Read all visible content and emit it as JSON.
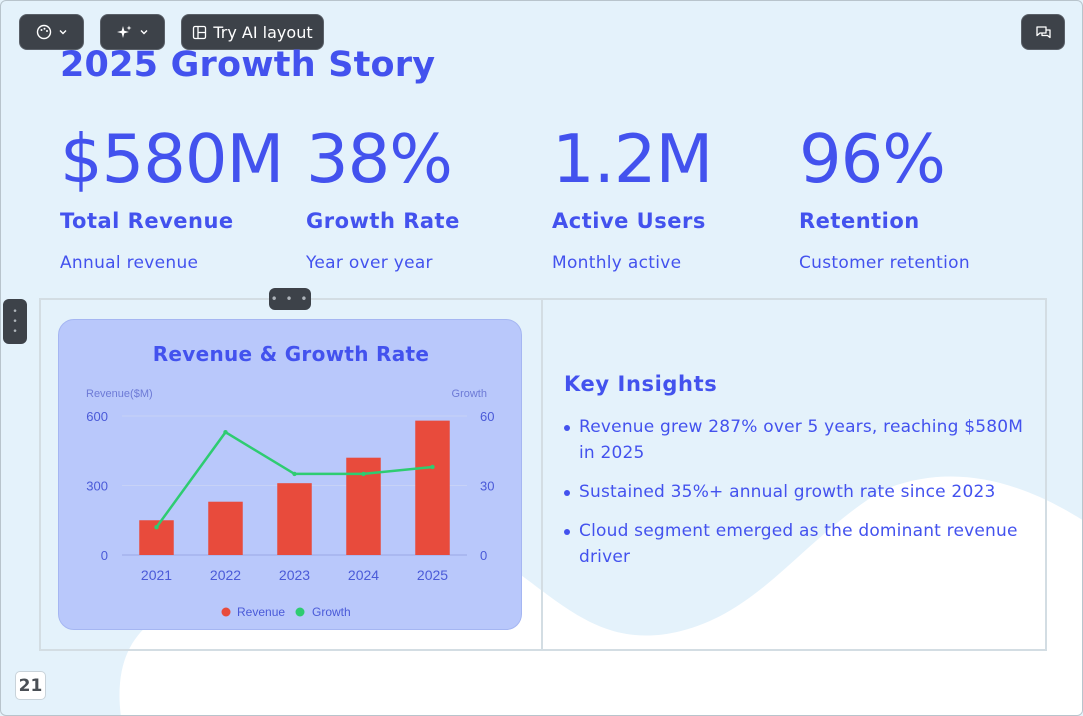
{
  "toolbar": {
    "theme_icon": "palette-icon",
    "magic_icon": "sparkle-icon",
    "layout_icon": "layout-icon",
    "layout_label": "Try AI layout",
    "comment_icon": "comment-icon"
  },
  "slide": {
    "title": "2025 Growth Story",
    "stats": [
      {
        "value": "$580M",
        "label": "Total Revenue",
        "sub": "Annual revenue"
      },
      {
        "value": "38%",
        "label": "Growth Rate",
        "sub": "Year over year"
      },
      {
        "value": "1.2M",
        "label": "Active Users",
        "sub": "Monthly active"
      },
      {
        "value": "96%",
        "label": "Retention",
        "sub": "Customer retention"
      }
    ],
    "insights": {
      "title": "Key Insights",
      "items": [
        "Revenue grew 287% over 5 years, reaching $580M in 2025",
        "Sustained 35%+ annual growth rate since 2023",
        "Cloud segment emerged as the dominant revenue driver"
      ]
    },
    "page_number": "21"
  },
  "colors": {
    "accent": "#4352ee",
    "bar": "#e84b3c",
    "line": "#2ecc71",
    "background": "#e4f2fb"
  },
  "chart_data": {
    "type": "bar",
    "title": "Revenue & Growth Rate",
    "categories": [
      "2021",
      "2022",
      "2023",
      "2024",
      "2025"
    ],
    "ylabel": "Revenue($M)",
    "y2label": "Growth",
    "ylim": [
      0,
      600
    ],
    "y2lim": [
      0,
      60
    ],
    "yticks": [
      "0",
      "300",
      "600"
    ],
    "y2ticks": [
      "0",
      "30",
      "60"
    ],
    "series": [
      {
        "name": "Revenue",
        "type": "bar",
        "axis": "left",
        "values": [
          150,
          230,
          310,
          420,
          580
        ]
      },
      {
        "name": "Growth",
        "type": "line",
        "axis": "right",
        "values": [
          12,
          53,
          35,
          35,
          38
        ]
      }
    ],
    "legend": "bottom",
    "grid": true
  }
}
